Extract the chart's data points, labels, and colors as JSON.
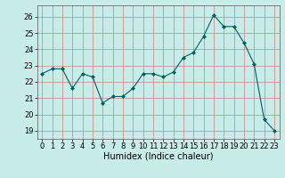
{
  "x": [
    0,
    1,
    2,
    3,
    4,
    5,
    6,
    7,
    8,
    9,
    10,
    11,
    12,
    13,
    14,
    15,
    16,
    17,
    18,
    19,
    20,
    21,
    22,
    23
  ],
  "y": [
    22.5,
    22.8,
    22.8,
    21.6,
    22.5,
    22.3,
    20.7,
    21.1,
    21.1,
    21.6,
    22.5,
    22.5,
    22.3,
    22.6,
    23.5,
    23.8,
    24.8,
    26.1,
    25.4,
    25.4,
    24.4,
    23.1,
    19.7,
    19.0
  ],
  "line_color": "#006060",
  "marker": "D",
  "marker_size": 2,
  "bg_color": "#c8ece8",
  "grid_color": "#e8a0a0",
  "xlabel": "Humidex (Indice chaleur)",
  "xlabel_fontsize": 7,
  "tick_fontsize": 6,
  "ylim": [
    18.5,
    26.7
  ],
  "yticks": [
    19,
    20,
    21,
    22,
    23,
    24,
    25,
    26
  ],
  "xlim": [
    -0.5,
    23.5
  ],
  "xticks": [
    0,
    1,
    2,
    3,
    4,
    5,
    6,
    7,
    8,
    9,
    10,
    11,
    12,
    13,
    14,
    15,
    16,
    17,
    18,
    19,
    20,
    21,
    22,
    23
  ]
}
